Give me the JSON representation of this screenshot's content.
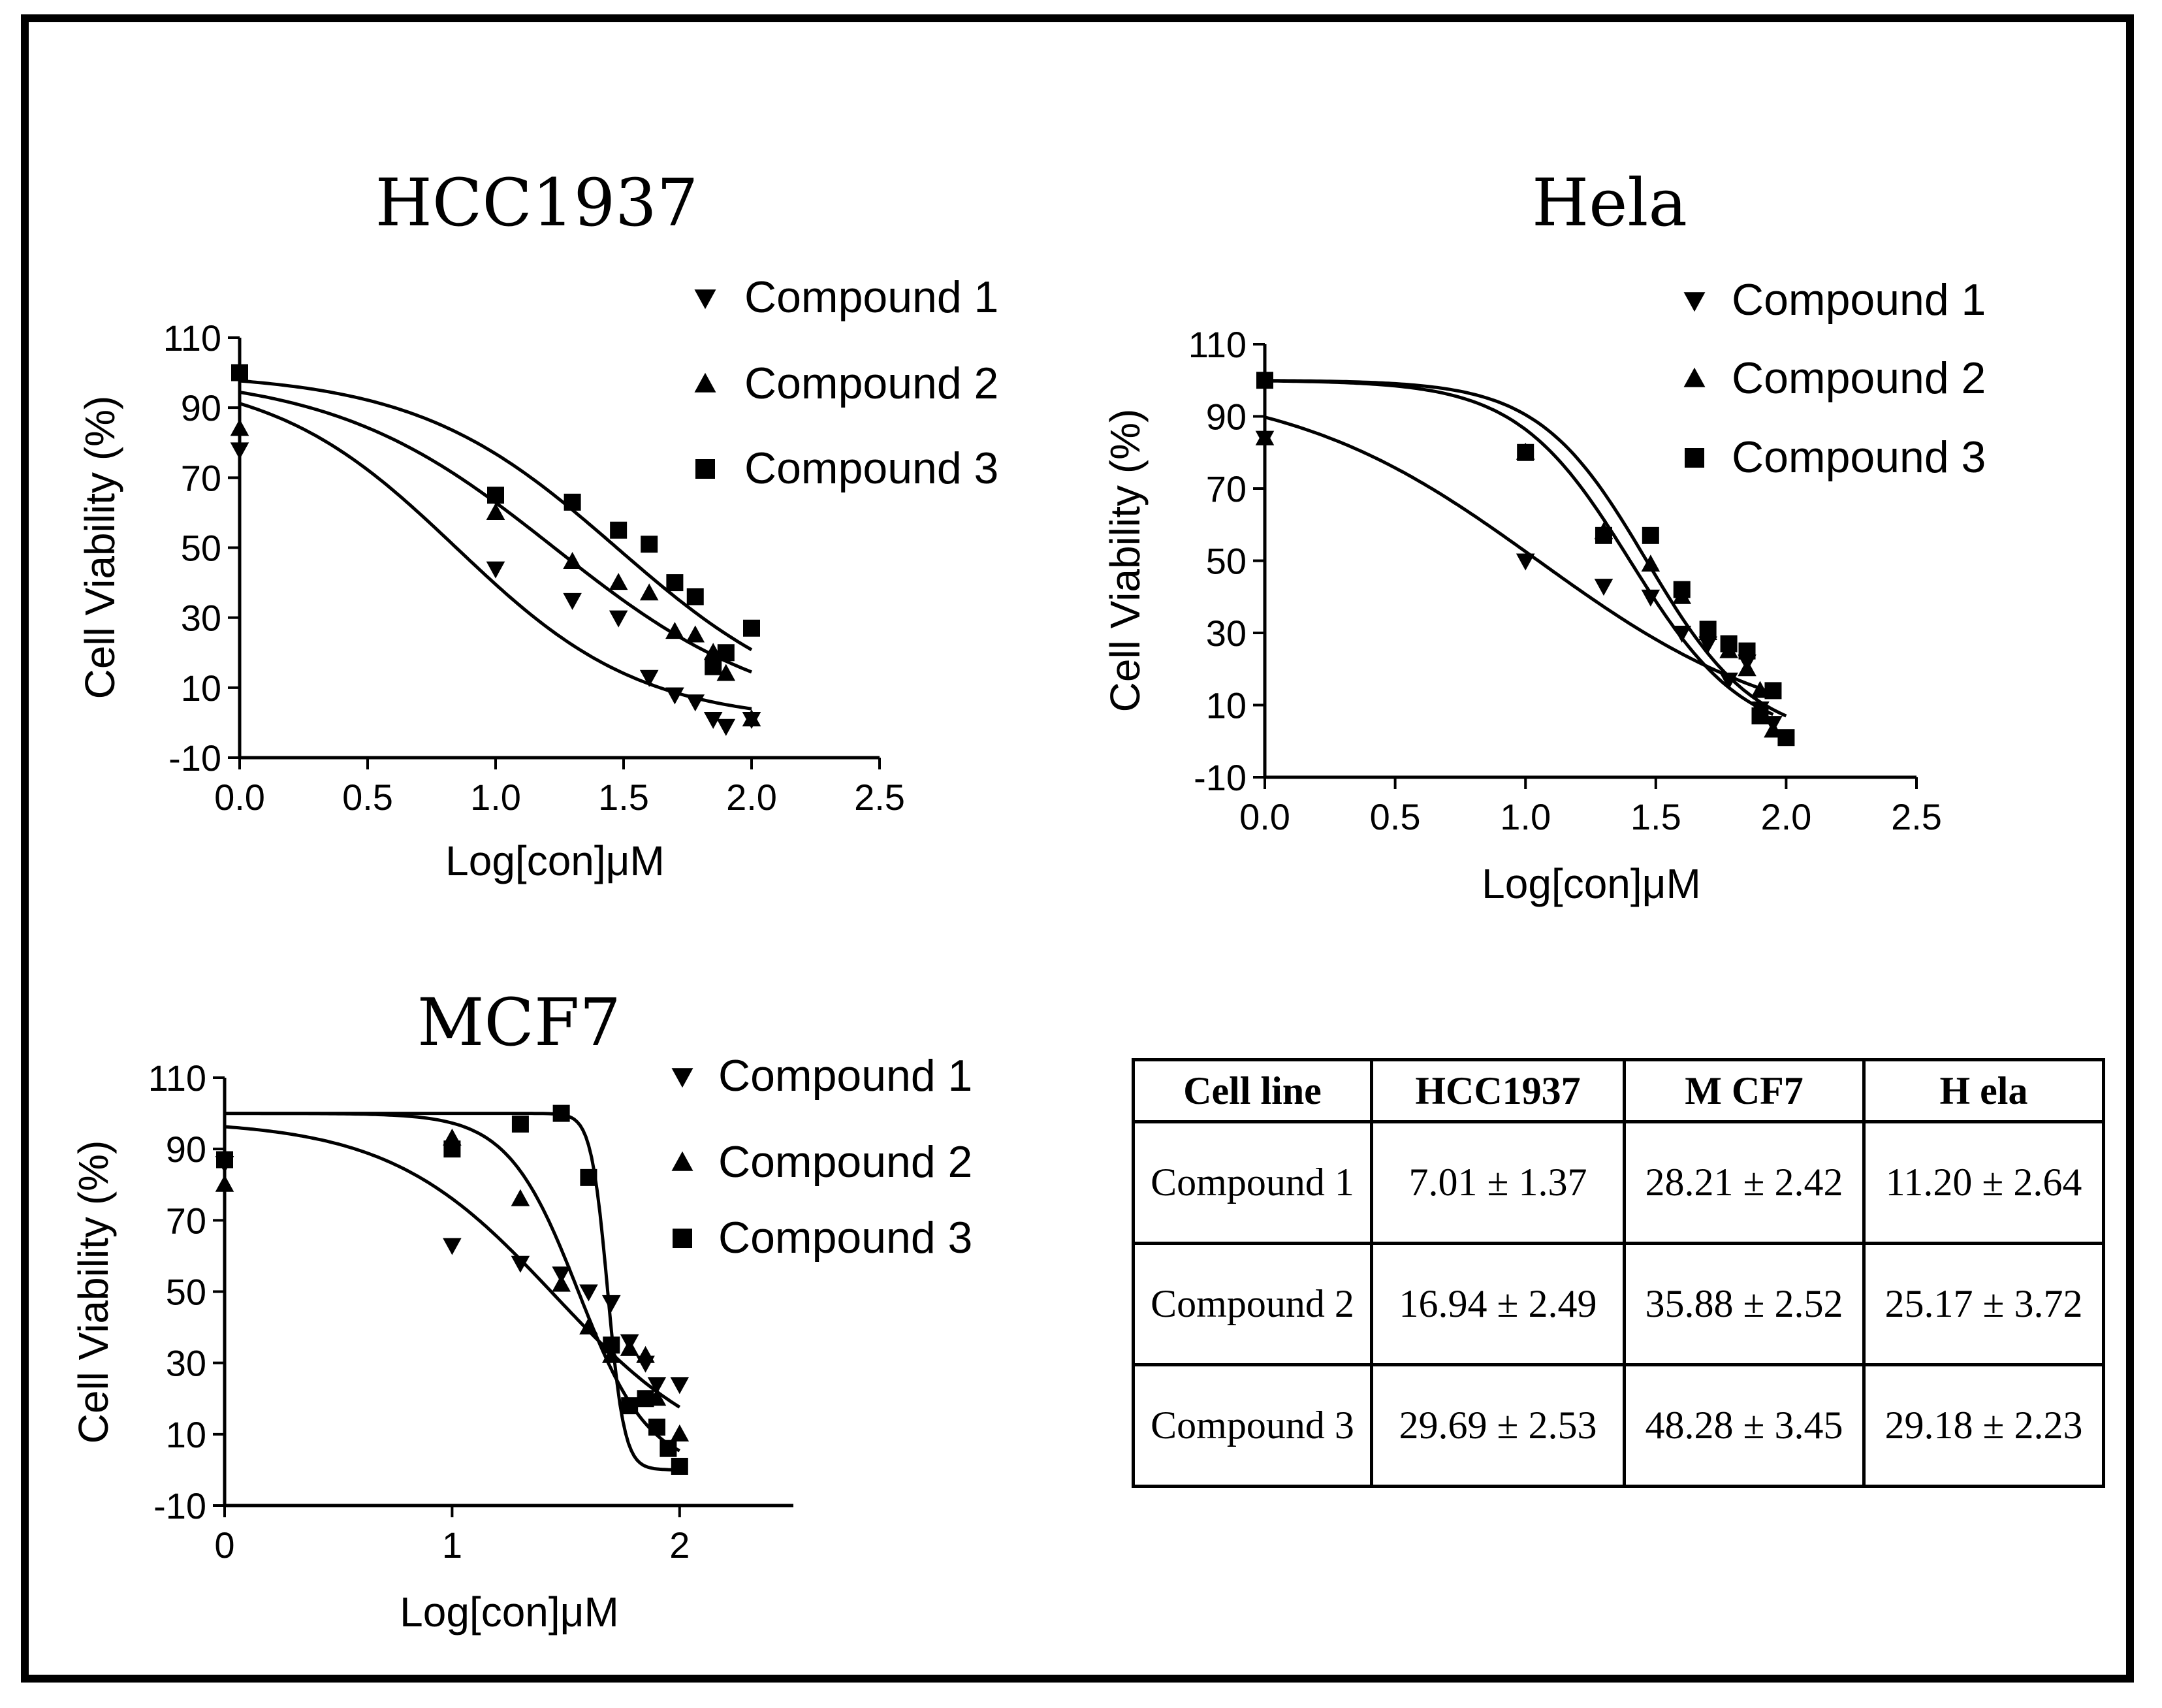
{
  "chart_data": [
    {
      "type": "scatter",
      "title": "HCC1937",
      "xlabel": "Log[con]μM",
      "ylabel": "Cell Viability (%)",
      "xlim": [
        0,
        2.5
      ],
      "ylim": [
        -10,
        110
      ],
      "xticks": [
        "0.0",
        "0.5",
        "1.0",
        "1.5",
        "2.0",
        "2.5"
      ],
      "yticks": [
        "-10",
        "10",
        "30",
        "50",
        "70",
        "90",
        "110"
      ],
      "legend_position": "top-right",
      "series": [
        {
          "name": "Compound 1",
          "marker": "triangle-down",
          "x": [
            0,
            1.0,
            1.3,
            1.48,
            1.6,
            1.7,
            1.78,
            1.85,
            1.9,
            2.0
          ],
          "y": [
            78,
            44,
            35,
            30,
            13,
            8,
            6,
            1,
            -1,
            1
          ],
          "curve": {
            "top": 100,
            "bottom": 0,
            "log_ic50": 0.846,
            "hill": 1.2
          }
        },
        {
          "name": "Compound 2",
          "marker": "triangle-up",
          "x": [
            0,
            1.0,
            1.3,
            1.48,
            1.6,
            1.7,
            1.78,
            1.85,
            1.9,
            2.0
          ],
          "y": [
            84,
            60,
            46,
            40,
            37,
            26,
            25,
            20,
            14,
            1
          ],
          "curve": {
            "top": 100,
            "bottom": 0,
            "log_ic50": 1.229,
            "hill": 1.0
          }
        },
        {
          "name": "Compound 3",
          "marker": "square",
          "x": [
            0,
            1.0,
            1.3,
            1.48,
            1.6,
            1.7,
            1.78,
            1.85,
            1.9,
            2.0
          ],
          "y": [
            100,
            65,
            63,
            55,
            51,
            40,
            36,
            16,
            20,
            27
          ],
          "curve": {
            "top": 100,
            "bottom": 0,
            "log_ic50": 1.473,
            "hill": 1.1
          }
        }
      ]
    },
    {
      "type": "scatter",
      "title": "Hela",
      "xlabel": "Log[con]μM",
      "ylabel": "Cell Viability (%)",
      "xlim": [
        0,
        2.5
      ],
      "ylim": [
        -10,
        110
      ],
      "xticks": [
        "0.0",
        "0.5",
        "1.0",
        "1.5",
        "2.0",
        "2.5"
      ],
      "yticks": [
        "-10",
        "10",
        "30",
        "50",
        "70",
        "90",
        "110"
      ],
      "legend_position": "top-right",
      "series": [
        {
          "name": "Compound 1",
          "marker": "triangle-down",
          "x": [
            0,
            1.0,
            1.3,
            1.48,
            1.6,
            1.7,
            1.78,
            1.85,
            1.9,
            1.95
          ],
          "y": [
            84,
            50,
            43,
            40,
            30,
            27,
            17,
            22,
            9,
            5
          ],
          "curve": {
            "top": 100,
            "bottom": 0,
            "log_ic50": 1.049,
            "hill": 0.9
          }
        },
        {
          "name": "Compound 2",
          "marker": "triangle-up",
          "x": [
            0,
            1.0,
            1.3,
            1.48,
            1.6,
            1.7,
            1.78,
            1.85,
            1.9,
            1.95
          ],
          "y": [
            84,
            80,
            58,
            49,
            40,
            30,
            25,
            20,
            14,
            3
          ],
          "curve": {
            "top": 100,
            "bottom": 0,
            "log_ic50": 1.401,
            "hill": 2.0
          }
        },
        {
          "name": "Compound 3",
          "marker": "square",
          "x": [
            0,
            1.0,
            1.3,
            1.48,
            1.6,
            1.7,
            1.78,
            1.85,
            1.9,
            1.95,
            2.0
          ],
          "y": [
            100,
            80,
            57,
            57,
            42,
            31,
            27,
            25,
            7,
            14,
            1
          ],
          "curve": {
            "top": 100,
            "bottom": 0,
            "log_ic50": 1.465,
            "hill": 2.1
          }
        }
      ]
    },
    {
      "type": "scatter",
      "title": "MCF7",
      "xlabel": "Log[con]μM",
      "ylabel": "Cell Viability (%)",
      "xlim": [
        0,
        2.5
      ],
      "ylim": [
        -10,
        110
      ],
      "xticks": [
        "0",
        "1",
        "2"
      ],
      "yticks": [
        "-10",
        "10",
        "30",
        "50",
        "70",
        "90",
        "110"
      ],
      "legend_position": "top-right",
      "series": [
        {
          "name": "Compound 1",
          "marker": "triangle-down",
          "x": [
            0,
            1.0,
            1.3,
            1.48,
            1.6,
            1.7,
            1.78,
            1.85,
            1.9,
            2.0
          ],
          "y": [
            86,
            63,
            58,
            55,
            50,
            47,
            36,
            30,
            24,
            24
          ],
          "curve": {
            "top": 98,
            "bottom": 0,
            "log_ic50": 1.45,
            "hill": 1.2
          }
        },
        {
          "name": "Compound 2",
          "marker": "triangle-up",
          "x": [
            0,
            1.0,
            1.3,
            1.48,
            1.6,
            1.7,
            1.78,
            1.85,
            1.9,
            2.0
          ],
          "y": [
            80,
            93,
            76,
            52,
            40,
            32,
            34,
            32,
            20,
            10
          ],
          "curve": {
            "top": 100,
            "bottom": 0,
            "log_ic50": 1.555,
            "hill": 2.8
          }
        },
        {
          "name": "Compound 3",
          "marker": "square",
          "x": [
            0,
            1.0,
            1.3,
            1.48,
            1.6,
            1.7,
            1.78,
            1.85,
            1.9,
            1.95,
            2.0
          ],
          "y": [
            87,
            90,
            97,
            100,
            82,
            35,
            18,
            20,
            12,
            6,
            1
          ],
          "curve": {
            "top": 100,
            "bottom": 0,
            "log_ic50": 1.684,
            "hill": 12.0
          }
        }
      ]
    },
    {
      "type": "table",
      "columns": [
        "Cell line",
        "HCC1937",
        "M CF7",
        "H ela"
      ],
      "rows": [
        [
          "Compound 1",
          "7.01 ± 1.37",
          "28.21 ± 2.42",
          "11.20 ± 2.64"
        ],
        [
          "Compound 2",
          "16.94 ± 2.49",
          "35.88 ± 2.52",
          "25.17 ± 3.72"
        ],
        [
          "Compound 3",
          "29.69 ± 2.53",
          "48.28 ± 3.45",
          "29.18 ± 2.23"
        ]
      ]
    }
  ]
}
